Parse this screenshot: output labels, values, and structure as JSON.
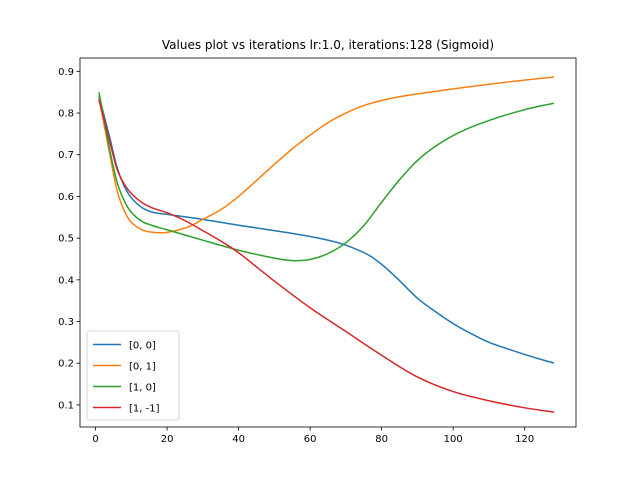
{
  "chart_data": {
    "type": "line",
    "title": "Values plot vs iterations lr:1.0, iterations:128 (Sigmoid)",
    "xlabel": "",
    "ylabel": "",
    "xlim": [
      -4.35,
      134.35
    ],
    "ylim": [
      0.047,
      0.932
    ],
    "xticks": [
      0,
      20,
      40,
      60,
      80,
      100,
      120
    ],
    "yticks": [
      0.1,
      0.2,
      0.3,
      0.4,
      0.5,
      0.6,
      0.7,
      0.8,
      0.9
    ],
    "grid": false,
    "legend_position": "lower-left",
    "series": [
      {
        "name": "[0, 0]",
        "color": "#1f77b4",
        "x": [
          1,
          4,
          6,
          8,
          10,
          13,
          16,
          20,
          30,
          40,
          50,
          60,
          66,
          70,
          76,
          80,
          85,
          90,
          95,
          100,
          105,
          110,
          115,
          120,
          125,
          128
        ],
        "y": [
          0.84,
          0.74,
          0.67,
          0.625,
          0.597,
          0.573,
          0.562,
          0.557,
          0.545,
          0.531,
          0.518,
          0.504,
          0.493,
          0.483,
          0.461,
          0.437,
          0.398,
          0.356,
          0.324,
          0.295,
          0.271,
          0.25,
          0.235,
          0.221,
          0.208,
          0.201
        ]
      },
      {
        "name": "[0, 1]",
        "color": "#ff7f0e",
        "x": [
          1,
          4,
          6,
          8,
          10,
          13,
          16,
          19,
          22,
          26,
          30,
          35,
          40,
          45,
          50,
          55,
          60,
          65,
          70,
          75,
          80,
          85,
          90,
          100,
          110,
          120,
          128
        ],
        "y": [
          0.835,
          0.7,
          0.615,
          0.566,
          0.538,
          0.52,
          0.514,
          0.513,
          0.517,
          0.527,
          0.545,
          0.568,
          0.6,
          0.638,
          0.677,
          0.714,
          0.747,
          0.777,
          0.8,
          0.818,
          0.83,
          0.839,
          0.846,
          0.858,
          0.869,
          0.879,
          0.886
        ]
      },
      {
        "name": "[1, 0]",
        "color": "#2ca02c",
        "x": [
          1,
          4,
          6,
          8,
          10,
          13,
          16,
          20,
          30,
          40,
          50,
          55,
          60,
          65,
          70,
          75,
          80,
          85,
          90,
          95,
          100,
          105,
          110,
          115,
          120,
          125,
          128
        ],
        "y": [
          0.848,
          0.71,
          0.635,
          0.59,
          0.562,
          0.54,
          0.53,
          0.52,
          0.495,
          0.471,
          0.452,
          0.446,
          0.449,
          0.463,
          0.489,
          0.53,
          0.586,
          0.64,
          0.686,
          0.72,
          0.746,
          0.766,
          0.782,
          0.796,
          0.808,
          0.818,
          0.823
        ]
      },
      {
        "name": "[1, -1]",
        "color": "#d62728",
        "x": [
          1,
          4,
          6,
          8,
          10,
          13,
          16,
          20,
          25,
          30,
          35,
          40,
          50,
          60,
          70,
          80,
          90,
          100,
          110,
          120,
          128
        ],
        "y": [
          0.83,
          0.73,
          0.666,
          0.63,
          0.607,
          0.585,
          0.572,
          0.561,
          0.542,
          0.518,
          0.493,
          0.465,
          0.397,
          0.333,
          0.276,
          0.219,
          0.167,
          0.132,
          0.11,
          0.093,
          0.083
        ]
      }
    ]
  }
}
